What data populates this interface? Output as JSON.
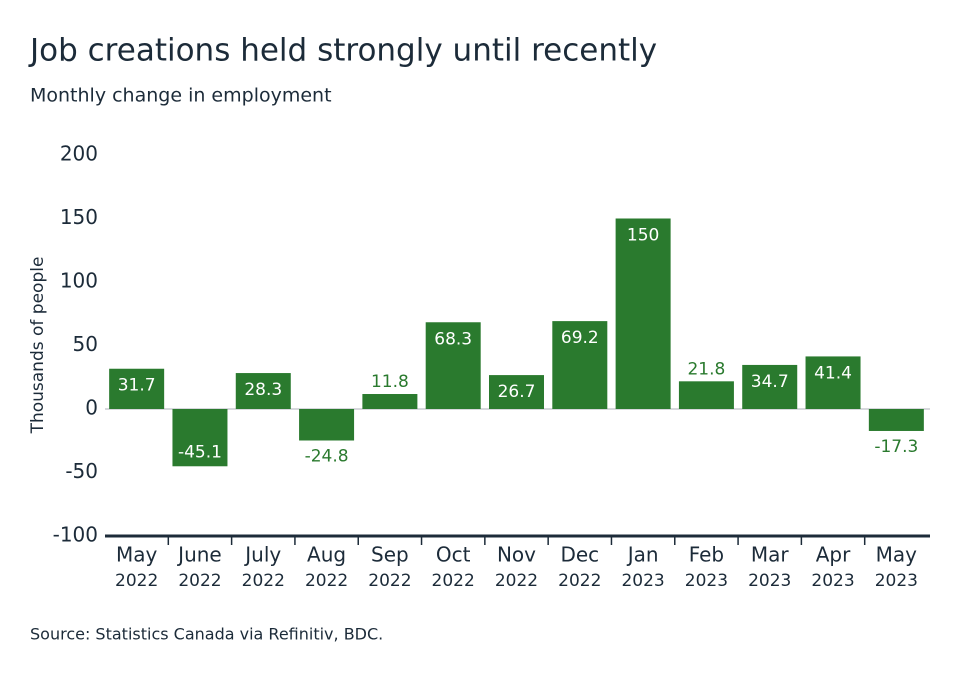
{
  "chart_data": {
    "type": "bar",
    "title": "Job creations held strongly until recently",
    "subtitle": "Monthly change in employment",
    "y_axis_label": "Thousands of people",
    "source": "Source: Statistics Canada via Refinitiv, BDC.",
    "categories": [
      [
        "May",
        "2022"
      ],
      [
        "June",
        "2022"
      ],
      [
        "July",
        "2022"
      ],
      [
        "Aug",
        "2022"
      ],
      [
        "Sep",
        "2022"
      ],
      [
        "Oct",
        "2022"
      ],
      [
        "Nov",
        "2022"
      ],
      [
        "Dec",
        "2022"
      ],
      [
        "Jan",
        "2023"
      ],
      [
        "Feb",
        "2023"
      ],
      [
        "Mar",
        "2023"
      ],
      [
        "Apr",
        "2023"
      ],
      [
        "May",
        "2023"
      ]
    ],
    "values": [
      31.7,
      -45.1,
      28.3,
      -24.8,
      11.8,
      68.3,
      26.7,
      69.2,
      150,
      21.8,
      34.7,
      41.4,
      -17.3
    ],
    "color": "#2a7a2e",
    "ylim": [
      -100,
      200
    ],
    "yticks": [
      -100,
      -50,
      0,
      50,
      100,
      150,
      200
    ]
  }
}
